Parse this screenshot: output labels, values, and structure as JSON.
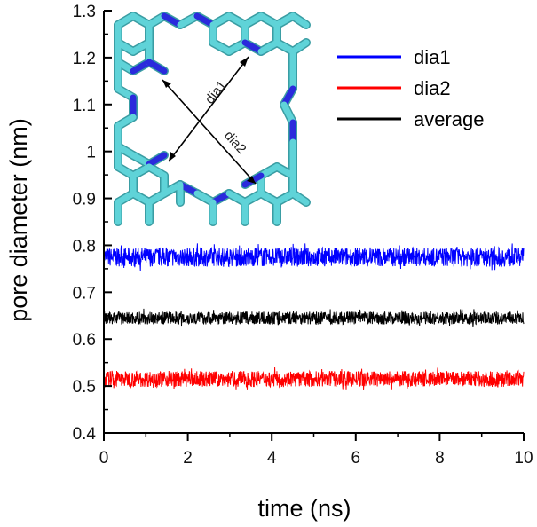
{
  "chart_data": {
    "type": "line",
    "xlabel": "time (ns)",
    "ylabel": "pore diameter (nm)",
    "xlim": [
      0,
      10
    ],
    "ylim": [
      0.4,
      1.3
    ],
    "x_ticks": [
      "0",
      "2",
      "4",
      "6",
      "8",
      "10"
    ],
    "y_ticks": [
      "0.4",
      "0.5",
      "0.6",
      "0.7",
      "0.8",
      "0.9",
      "1",
      "1.1",
      "1.2",
      "1.3"
    ],
    "grid": false,
    "legend_position": "top-right",
    "series": [
      {
        "name": "dia1",
        "color": "#0000ff",
        "x": [
          0,
          10
        ],
        "y": [
          0.775,
          0.775
        ],
        "noise_band": [
          0.745,
          0.805
        ]
      },
      {
        "name": "dia2",
        "color": "#ff0000",
        "x": [
          0,
          10
        ],
        "y": [
          0.515,
          0.515
        ],
        "noise_band": [
          0.49,
          0.54
        ]
      },
      {
        "name": "average",
        "color": "#000000",
        "x": [
          0,
          10
        ],
        "y": [
          0.645,
          0.645
        ],
        "noise_band": [
          0.625,
          0.665
        ]
      }
    ],
    "inset": {
      "description_icon": "porous-graphene-structure",
      "labels": [
        "dia1",
        "dia2"
      ],
      "bond_colors": {
        "carbon": "#5fd3d8",
        "nitrogen": "#2a2adc"
      }
    }
  }
}
